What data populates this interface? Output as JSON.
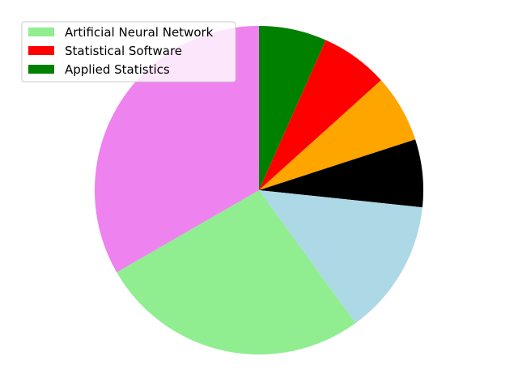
{
  "chart_data": {
    "type": "pie",
    "title": "",
    "start_angle_deg": 90,
    "direction": "clockwise",
    "slices": [
      {
        "label": "Applied Statistics",
        "value": 1,
        "color": "#008000"
      },
      {
        "label": "Statistical Software",
        "value": 1,
        "color": "#ff0000"
      },
      {
        "label": "",
        "value": 1,
        "color": "#ffa500"
      },
      {
        "label": "",
        "value": 1,
        "color": "#000000"
      },
      {
        "label": "",
        "value": 2,
        "color": "#add8e6"
      },
      {
        "label": "Artificial Neural Network",
        "value": 4,
        "color": "#90ee90"
      },
      {
        "label": "",
        "value": 5,
        "color": "#ee82ee"
      }
    ],
    "legend": {
      "placement": "upper-left",
      "entries": [
        {
          "label": "Artificial Neural Network",
          "color": "#90ee90"
        },
        {
          "label": "Statistical Software",
          "color": "#ff0000"
        },
        {
          "label": "Applied Statistics",
          "color": "#008000"
        }
      ]
    }
  }
}
